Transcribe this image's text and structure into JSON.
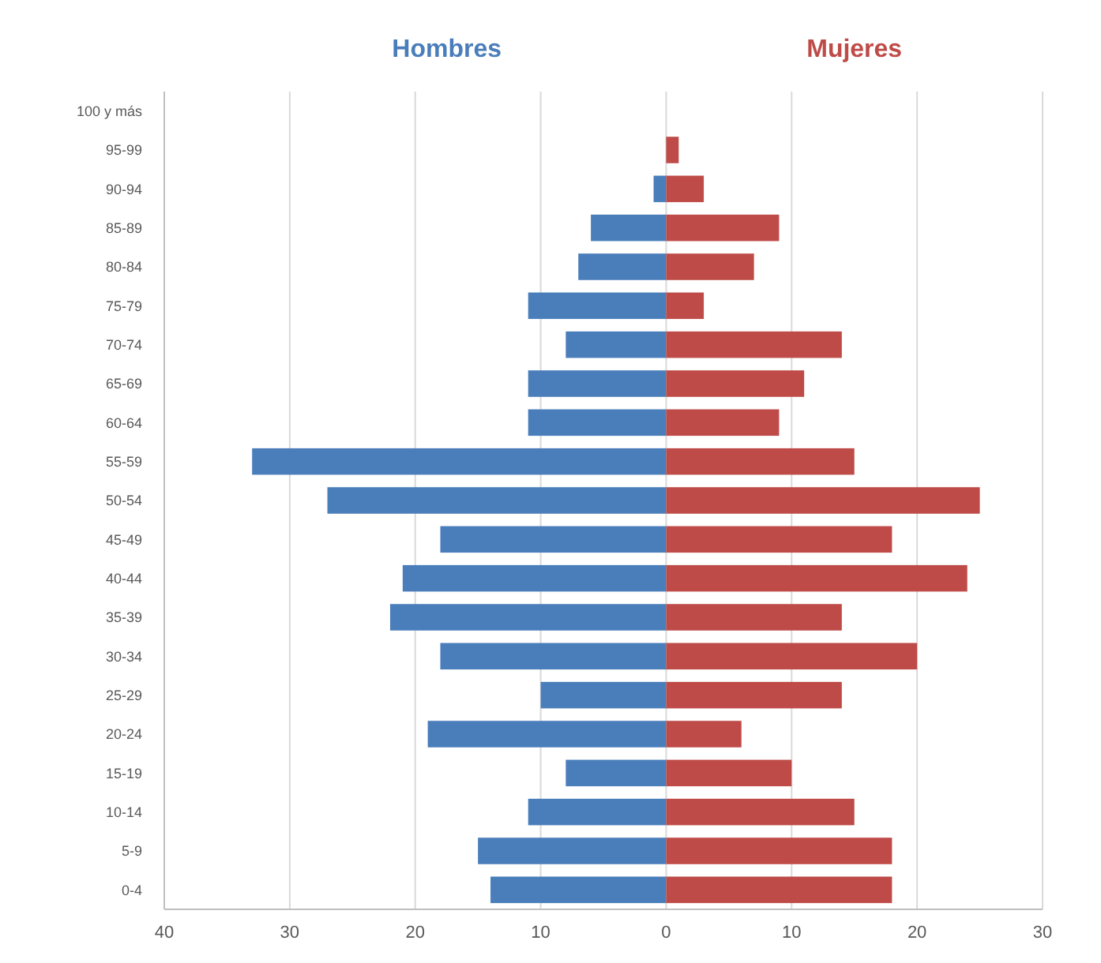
{
  "chart_data": {
    "type": "bar",
    "orientation": "horizontal",
    "categories": [
      "100 y más",
      "95-99",
      "90-94",
      "85-89",
      "80-84",
      "75-79",
      "70-74",
      "65-69",
      "60-64",
      "55-59",
      "50-54",
      "45-49",
      "40-44",
      "35-39",
      "30-34",
      "25-29",
      "20-24",
      "15-19",
      "10-14",
      "5-9",
      "0-4"
    ],
    "series": [
      {
        "name": "Hombres",
        "color": "#4a7ebb",
        "values": [
          null,
          null,
          -1,
          -6,
          -7,
          -11,
          -8,
          -11,
          -11,
          -33,
          -27,
          -18,
          -21,
          -22,
          -18,
          -10,
          -19,
          -8,
          -11,
          -15,
          -14
        ]
      },
      {
        "name": "Mujeres",
        "color": "#be4b48",
        "values": [
          null,
          1,
          3,
          9,
          7,
          3,
          14,
          11,
          9,
          15,
          25,
          18,
          24,
          14,
          20,
          14,
          6,
          10,
          15,
          18,
          18
        ]
      }
    ],
    "xlim": [
      -40,
      30
    ],
    "xticks": [
      {
        "value": -40,
        "label": "40"
      },
      {
        "value": -30,
        "label": "30"
      },
      {
        "value": -20,
        "label": "20"
      },
      {
        "value": -10,
        "label": "10"
      },
      0,
      10,
      20,
      30
    ],
    "grid": "x",
    "stacked": true
  }
}
